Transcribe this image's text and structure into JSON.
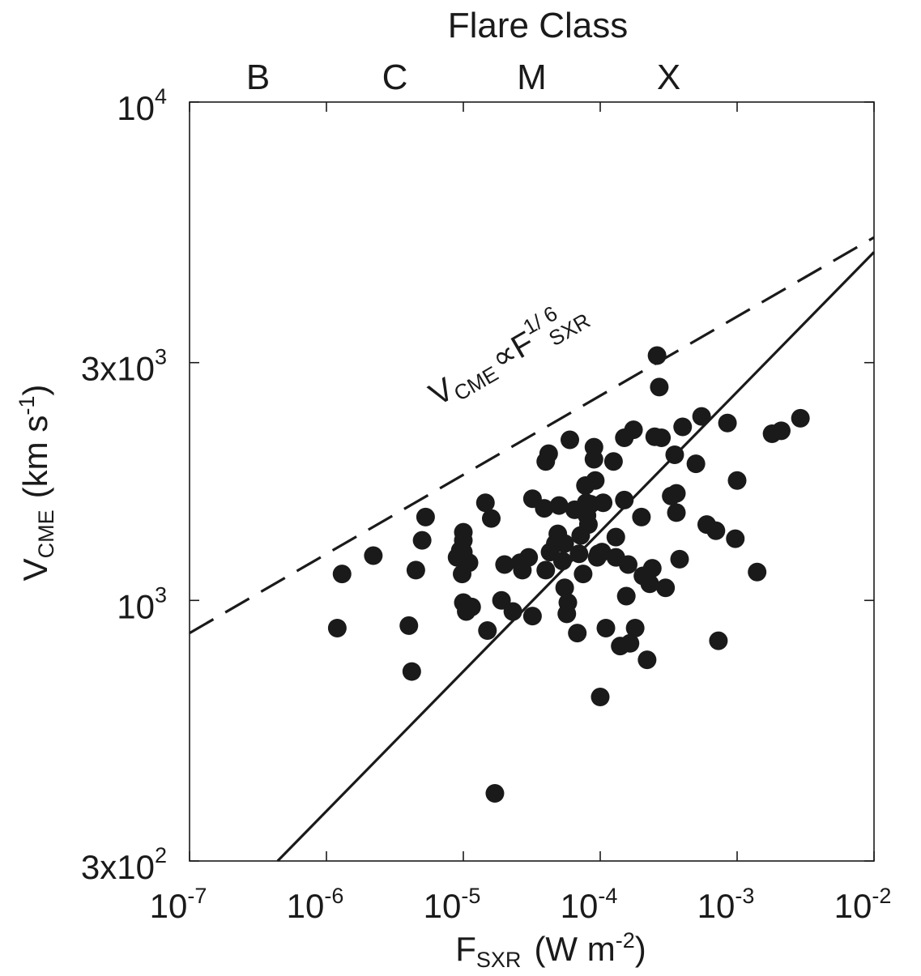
{
  "chart_data": {
    "type": "scatter",
    "top_title": "Flare Class",
    "flare_classes": [
      "B",
      "C",
      "M",
      "X"
    ],
    "xlabel": {
      "main": "F",
      "sub": "SXR",
      "unit": "(W m",
      "unit_exp": "-2",
      "unit_close": ")"
    },
    "ylabel": {
      "main": "V",
      "sub": "CME",
      "unit": "(km s",
      "unit_exp": "-1",
      "unit_close": ")"
    },
    "xscale": "log",
    "yscale": "log",
    "xlim": [
      1e-07,
      0.01
    ],
    "ylim": [
      300,
      10000
    ],
    "x_ticks": [
      {
        "value": 1e-07,
        "base": "10",
        "exp": "-7"
      },
      {
        "value": 1e-06,
        "base": "10",
        "exp": "-6"
      },
      {
        "value": 1e-05,
        "base": "10",
        "exp": "-5"
      },
      {
        "value": 0.0001,
        "base": "10",
        "exp": "-4"
      },
      {
        "value": 0.001,
        "base": "10",
        "exp": "-3"
      },
      {
        "value": 0.01,
        "base": "10",
        "exp": "-2"
      }
    ],
    "y_ticks": [
      {
        "value": 300,
        "base": "3x10",
        "exp": "2"
      },
      {
        "value": 1000,
        "base": "10",
        "exp": "3"
      },
      {
        "value": 3000,
        "base": "3x10",
        "exp": "3"
      },
      {
        "value": 10000,
        "base": "10",
        "exp": "4"
      }
    ],
    "annotation": {
      "v": "V",
      "v_sub": "CME",
      "prop": "∝",
      "f": "F",
      "f_sub": "SXR",
      "f_exp": "1/ 6"
    },
    "fit_line": {
      "style": "solid",
      "points": [
        [
          4.4e-07,
          300
        ],
        [
          0.01,
          5000
        ]
      ]
    },
    "proportional_line": {
      "style": "dashed",
      "exponent": 0.1667,
      "points": [
        [
          1e-07,
          860
        ],
        [
          0.01,
          5350
        ]
      ]
    },
    "points": [
      [
        1.2e-06,
        880
      ],
      [
        1.3e-06,
        1130
      ],
      [
        2.2e-06,
        1230
      ],
      [
        4e-06,
        890
      ],
      [
        4.2e-06,
        720
      ],
      [
        4.5e-06,
        1150
      ],
      [
        5e-06,
        1320
      ],
      [
        5.3e-06,
        1470
      ],
      [
        9e-06,
        1220
      ],
      [
        9.5e-06,
        1260
      ],
      [
        1e-05,
        1370
      ],
      [
        1e-05,
        1320
      ],
      [
        1e-05,
        1250
      ],
      [
        9.8e-06,
        1130
      ],
      [
        1e-05,
        990
      ],
      [
        1.05e-05,
        950
      ],
      [
        1.1e-05,
        1190
      ],
      [
        1.15e-05,
        970
      ],
      [
        1.45e-05,
        1570
      ],
      [
        1.5e-05,
        870
      ],
      [
        1.6e-05,
        1460
      ],
      [
        1.7e-05,
        410
      ],
      [
        1.9e-05,
        1000
      ],
      [
        2e-05,
        1180
      ],
      [
        2.3e-05,
        950
      ],
      [
        2.6e-05,
        1190
      ],
      [
        2.7e-05,
        1150
      ],
      [
        3e-05,
        1220
      ],
      [
        3.2e-05,
        1600
      ],
      [
        3.2e-05,
        930
      ],
      [
        3.9e-05,
        1530
      ],
      [
        4e-05,
        1150
      ],
      [
        4e-05,
        1900
      ],
      [
        4.2e-05,
        1970
      ],
      [
        4.3e-05,
        1250
      ],
      [
        4.7e-05,
        1300
      ],
      [
        4.9e-05,
        1360
      ],
      [
        5e-05,
        1550
      ],
      [
        5.3e-05,
        1200
      ],
      [
        5.5e-05,
        1300
      ],
      [
        5.5e-05,
        1060
      ],
      [
        5.7e-05,
        940
      ],
      [
        5.8e-05,
        990
      ],
      [
        6e-05,
        2100
      ],
      [
        6.5e-05,
        1520
      ],
      [
        6.8e-05,
        860
      ],
      [
        7e-05,
        1240
      ],
      [
        7.2e-05,
        1350
      ],
      [
        7.5e-05,
        1130
      ],
      [
        7.8e-05,
        1700
      ],
      [
        7.9e-05,
        1570
      ],
      [
        8e-05,
        1480
      ],
      [
        8.2e-05,
        1420
      ],
      [
        8.5e-05,
        1560
      ],
      [
        9e-05,
        2030
      ],
      [
        9e-05,
        1920
      ],
      [
        9.2e-05,
        1740
      ],
      [
        9.5e-05,
        1220
      ],
      [
        9.7e-05,
        1240
      ],
      [
        0.0001,
        640
      ],
      [
        0.000103,
        1250
      ],
      [
        0.000105,
        1570
      ],
      [
        0.00011,
        880
      ],
      [
        0.000125,
        1900
      ],
      [
        0.00013,
        1340
      ],
      [
        0.00013,
        1220
      ],
      [
        0.00014,
        810
      ],
      [
        0.00015,
        2120
      ],
      [
        0.00015,
        1590
      ],
      [
        0.000155,
        1020
      ],
      [
        0.00016,
        1180
      ],
      [
        0.000165,
        820
      ],
      [
        0.000175,
        2200
      ],
      [
        0.00018,
        880
      ],
      [
        0.0002,
        1470
      ],
      [
        0.000205,
        1120
      ],
      [
        0.00022,
        760
      ],
      [
        0.00023,
        1080
      ],
      [
        0.00024,
        1160
      ],
      [
        0.00025,
        2130
      ],
      [
        0.00026,
        3100
      ],
      [
        0.00027,
        2680
      ],
      [
        0.00028,
        2120
      ],
      [
        0.0003,
        1060
      ],
      [
        0.00033,
        1620
      ],
      [
        0.00035,
        1960
      ],
      [
        0.00036,
        1640
      ],
      [
        0.00036,
        1500
      ],
      [
        0.00038,
        1210
      ],
      [
        0.0004,
        2230
      ],
      [
        0.0005,
        1880
      ],
      [
        0.00055,
        2340
      ],
      [
        0.0006,
        1420
      ],
      [
        0.0007,
        1380
      ],
      [
        0.00073,
        830
      ],
      [
        0.00085,
        2270
      ],
      [
        0.00097,
        1330
      ],
      [
        0.001,
        1740
      ],
      [
        0.0014,
        1140
      ],
      [
        0.0018,
        2160
      ],
      [
        0.0021,
        2190
      ],
      [
        0.0029,
        2320
      ]
    ]
  }
}
